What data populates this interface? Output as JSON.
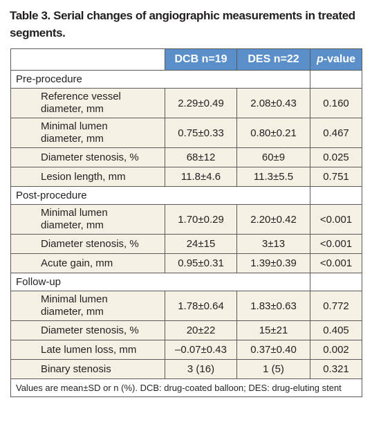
{
  "title": "Table 3. Serial changes of angiographic measurements in treated segments.",
  "header": [
    "DCB n=19",
    "DES n=22",
    {
      "italic": "p",
      "rest": "-value"
    }
  ],
  "sections": [
    {
      "name": "Pre-procedure",
      "rows": [
        [
          "Reference vessel diameter, mm",
          "2.29±0.49",
          "2.08±0.43",
          "0.160"
        ],
        [
          "Minimal lumen diameter, mm",
          "0.75±0.33",
          "0.80±0.21",
          "0.467"
        ],
        [
          "Diameter stenosis, %",
          "68±12",
          "60±9",
          "0.025"
        ],
        [
          "Lesion length, mm",
          "11.8±4.6",
          "11.3±5.5",
          "0.751"
        ]
      ]
    },
    {
      "name": "Post-procedure",
      "rows": [
        [
          "Minimal lumen diameter, mm",
          "1.70±0.29",
          "2.20±0.42",
          "<0.001"
        ],
        [
          "Diameter stenosis, %",
          "24±15",
          "3±13",
          "<0.001"
        ],
        [
          "Acute gain, mm",
          "0.95±0.31",
          "1.39±0.39",
          "<0.001"
        ]
      ]
    },
    {
      "name": "Follow-up",
      "rows": [
        [
          "Minimal lumen diameter, mm",
          "1.78±0.64",
          "1.83±0.63",
          "0.772"
        ],
        [
          "Diameter stenosis, %",
          "20±22",
          "15±21",
          "0.405"
        ],
        [
          "Late lumen loss, mm",
          "–0.07±0.43",
          "0.37±0.40",
          "0.002"
        ],
        [
          "Binary stenosis",
          "3 (16)",
          "1 (5)",
          "0.321"
        ]
      ]
    }
  ],
  "footnote": "Values are mean±SD or n (%). DCB: drug-coated balloon; DES: drug-eluting stent"
}
